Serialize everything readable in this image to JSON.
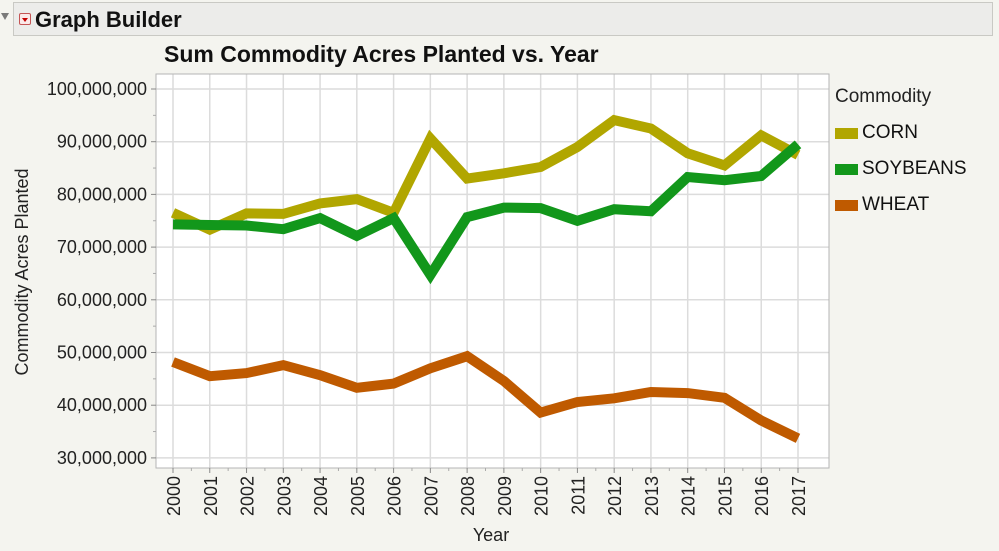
{
  "window": {
    "title": "Graph Builder"
  },
  "chart_data": {
    "type": "line",
    "title": "Sum Commodity Acres Planted vs. Year",
    "xlabel": "Year",
    "ylabel": "Commodity Acres Planted",
    "x": [
      2000,
      2001,
      2002,
      2003,
      2004,
      2005,
      2006,
      2007,
      2008,
      2009,
      2010,
      2011,
      2012,
      2013,
      2014,
      2015,
      2016,
      2017
    ],
    "ylim": [
      28000000,
      102000000
    ],
    "yticks": [
      30000000,
      40000000,
      50000000,
      60000000,
      70000000,
      80000000,
      90000000,
      100000000
    ],
    "ytick_labels": [
      "30,000,000",
      "40,000,000",
      "50,000,000",
      "60,000,000",
      "70,000,000",
      "80,000,000",
      "90,000,000",
      "100,000,000"
    ],
    "grid": true,
    "legend": {
      "title": "Commodity",
      "placement": "right"
    },
    "series": [
      {
        "name": "CORN",
        "color": "#b1a600",
        "values": [
          76500000,
          73300000,
          76400000,
          76300000,
          78300000,
          79100000,
          76500000,
          90600000,
          83000000,
          84000000,
          85200000,
          89000000,
          94100000,
          92500000,
          87800000,
          85500000,
          91200000,
          87500000
        ]
      },
      {
        "name": "SOYBEANS",
        "color": "#12971b",
        "values": [
          74300000,
          74200000,
          74100000,
          73400000,
          75500000,
          72100000,
          75500000,
          64700000,
          75700000,
          77500000,
          77400000,
          75000000,
          77200000,
          76800000,
          83300000,
          82700000,
          83500000,
          89500000
        ]
      },
      {
        "name": "WHEAT",
        "color": "#bf5a00",
        "values": [
          48200000,
          45500000,
          46100000,
          47600000,
          45700000,
          43300000,
          44100000,
          47000000,
          49300000,
          44600000,
          38600000,
          40600000,
          41300000,
          42500000,
          42300000,
          41400000,
          37100000,
          33700000
        ]
      }
    ]
  }
}
